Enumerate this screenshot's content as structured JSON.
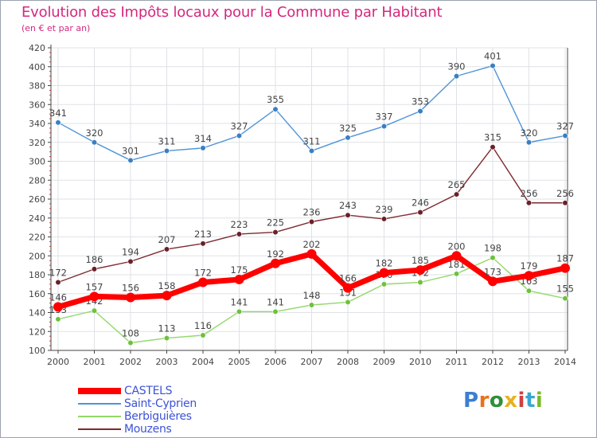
{
  "header": {
    "title": "Evolution des Impôts locaux pour la Commune par Habitant",
    "subtitle": "(en € et par an)"
  },
  "logo": {
    "text": "Proxiti",
    "colors": [
      "#3a7fd1",
      "#e8721c",
      "#2f8f3a",
      "#e8b21c",
      "#d23f3f",
      "#3aa6d1",
      "#7bb92f"
    ]
  },
  "chart_data": {
    "type": "line",
    "x": [
      2000,
      2001,
      2002,
      2003,
      2004,
      2005,
      2006,
      2007,
      2008,
      2009,
      2010,
      2011,
      2012,
      2013,
      2014
    ],
    "ylim": [
      100,
      420
    ],
    "yticks": [
      100,
      120,
      140,
      160,
      180,
      200,
      220,
      240,
      260,
      280,
      300,
      320,
      340,
      360,
      380,
      400,
      420
    ],
    "grid": true,
    "legend_position": "bottom-left",
    "series": [
      {
        "name": "Saint-Cyprien",
        "color": "#4f94d8",
        "marker": "#3a7fc4",
        "values": [
          341,
          320,
          301,
          311,
          314,
          327,
          355,
          311,
          325,
          337,
          353,
          390,
          401,
          320,
          327
        ]
      },
      {
        "name": "Mouzens",
        "color": "#7d2a30",
        "marker": "#6b2028",
        "values": [
          172,
          186,
          194,
          207,
          213,
          223,
          225,
          236,
          243,
          239,
          246,
          265,
          315,
          256,
          256
        ]
      },
      {
        "name": "Berbiguières",
        "color": "#93d86a",
        "marker": "#6ec13c",
        "values": [
          133,
          142,
          108,
          113,
          116,
          141,
          141,
          148,
          151,
          170,
          172,
          181,
          198,
          163,
          155
        ]
      },
      {
        "name": "CASTELS",
        "color": "#ff0000",
        "marker": "#ff0000",
        "values": [
          146,
          157,
          156,
          158,
          172,
          175,
          192,
          202,
          166,
          182,
          185,
          200,
          173,
          179,
          187
        ]
      }
    ],
    "legend_order": [
      "CASTELS",
      "Saint-Cyprien",
      "Berbiguières",
      "Mouzens"
    ],
    "bold_series": "CASTELS"
  }
}
